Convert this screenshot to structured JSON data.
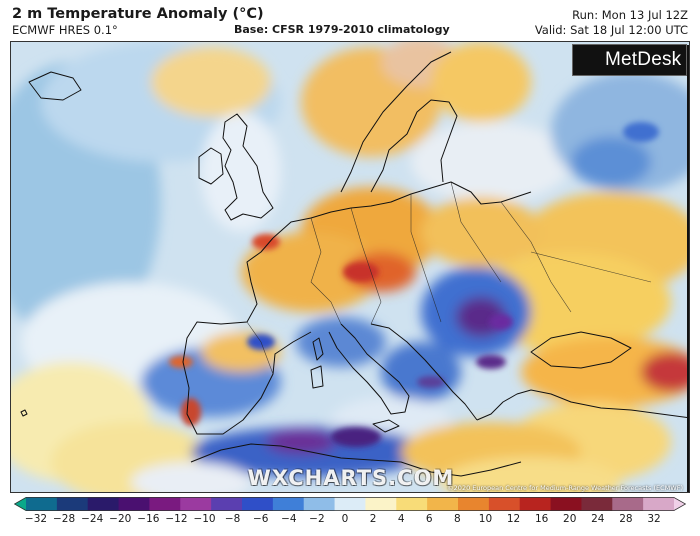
{
  "header": {
    "title": "2 m Temperature Anomaly (°C)",
    "model": "ECMWF HRES 0.1°",
    "base": "Base: CFSR 1979-2010 climatology",
    "run": "Run: Mon 13 Jul 12Z",
    "valid": "Valid: Sat 18 Jul 12:00 UTC"
  },
  "map": {
    "logo_text": "MetDesk",
    "watermark": "WXCHARTS.COM",
    "credit": "©2020 European Centre for Medium-Range Weather Forecasts (ECMWF)",
    "colors": {
      "ocean_cool": "#a9cde6",
      "ocean_neutral": "#dcebf5",
      "warm_orange": "#f0b041",
      "warm_yellow": "#f8e08a",
      "hot_red": "#d8432a",
      "cool_blue": "#2f5fc8",
      "cold_purple": "#5a2a8a",
      "coastline": "#111111"
    }
  },
  "colorbar": {
    "ticks": [
      "−32",
      "−28",
      "−24",
      "−20",
      "−16",
      "−12",
      "−10",
      "−8",
      "−6",
      "−4",
      "−2",
      "0",
      "2",
      "4",
      "6",
      "8",
      "10",
      "12",
      "16",
      "20",
      "24",
      "28",
      "32"
    ],
    "colors": [
      "#0aa88a",
      "#0f6b8f",
      "#1b3a7a",
      "#2a1a6a",
      "#4a1070",
      "#7a1a80",
      "#9b3aa0",
      "#5b3fb0",
      "#2f4fc8",
      "#3f7fd8",
      "#8fbde8",
      "#dcecf7",
      "#fbf3c8",
      "#f8dc78",
      "#f2b54a",
      "#e8852e",
      "#d8502a",
      "#b8241f",
      "#8a1020",
      "#7a2a3a",
      "#a86a8a",
      "#d8a8c8",
      "#f0d0e8"
    ]
  }
}
